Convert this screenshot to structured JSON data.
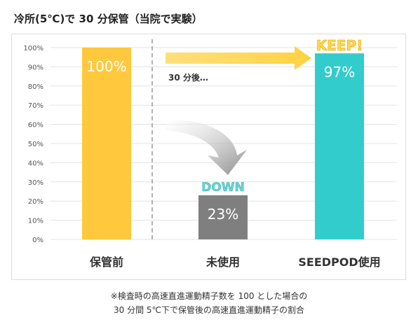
{
  "title": "冷所(5℃)で 30 分保管（当院で実験）",
  "chart_data": {
    "type": "bar",
    "categories": [
      "保管前",
      "未使用",
      "SEEDPOD使用"
    ],
    "values": [
      100,
      23,
      97
    ],
    "value_labels": [
      "100%",
      "23%",
      "97%"
    ],
    "colors": [
      "#FFC83D",
      "#7F7F7F",
      "#33CCCC"
    ],
    "ylim": [
      0,
      100
    ],
    "yticks": [
      "0%",
      "10%",
      "20%",
      "30%",
      "40%",
      "50%",
      "60%",
      "70%",
      "80%",
      "90%",
      "100%"
    ],
    "grid": true,
    "annotations": {
      "arrow_text": "30 分後…",
      "keep": "KEEP!",
      "down": "DOWN"
    },
    "annotation_colors": {
      "keep": "#FFD84A",
      "down": "#6FD3D3",
      "right_arrow": "#FFD966",
      "curved_arrow": "#8C8C8C"
    }
  },
  "footnote": [
    "※検査時の高速直進運動精子数を 100 とした場合の",
    "30 分間 5℃下で保管後の高速直進運動精子の割合"
  ]
}
